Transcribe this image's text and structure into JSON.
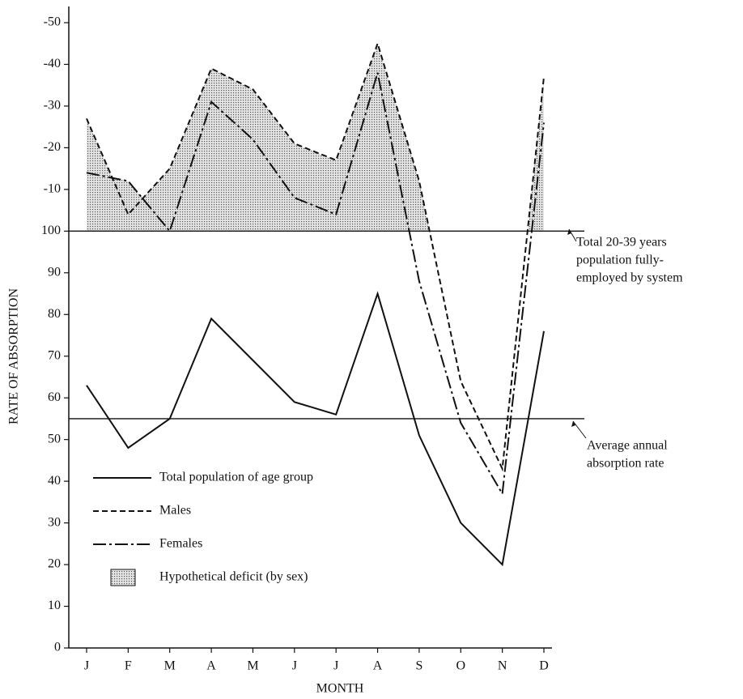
{
  "chart_data": {
    "type": "line",
    "x_label": "MONTH",
    "y_label": "RATE OF ABSORPTION",
    "categories": [
      "J",
      "F",
      "M",
      "A",
      "M",
      "J",
      "J",
      "A",
      "S",
      "O",
      "N",
      "D"
    ],
    "series": [
      {
        "name": "Total population of age group",
        "color": "#111111",
        "style": "solid",
        "values": [
          63,
          48,
          55,
          79,
          69,
          59,
          56,
          85,
          51,
          30,
          20,
          76
        ]
      },
      {
        "name": "Males",
        "color": "#111111",
        "style": "dashed",
        "values": [
          127,
          104,
          115,
          139,
          134,
          121,
          117,
          145,
          112,
          64,
          43,
          137
        ]
      },
      {
        "name": "Females",
        "color": "#111111",
        "style": "dashdot",
        "values": [
          114,
          112,
          100,
          131,
          122,
          108,
          104,
          138,
          88,
          54,
          37,
          126
        ]
      }
    ],
    "deficit": {
      "name": "Hypothetical deficit (by sex)",
      "above": 100
    },
    "reference_lines": [
      {
        "value": 100,
        "label": [
          "Total 20-39 years",
          "population fully-",
          "employed by system"
        ]
      },
      {
        "value": 55,
        "label": [
          "Average annual",
          "absorption rate"
        ]
      }
    ],
    "ylim": [
      0,
      150
    ],
    "yticks": [
      0,
      10,
      20,
      30,
      40,
      50,
      60,
      70,
      80,
      90,
      100,
      {
        "value": 110,
        "label": "-10"
      },
      {
        "value": 120,
        "label": "-20"
      },
      {
        "value": 130,
        "label": "-30"
      },
      {
        "value": 140,
        "label": "-40"
      },
      {
        "value": 150,
        "label": "-50"
      }
    ],
    "legend": "lower left"
  }
}
